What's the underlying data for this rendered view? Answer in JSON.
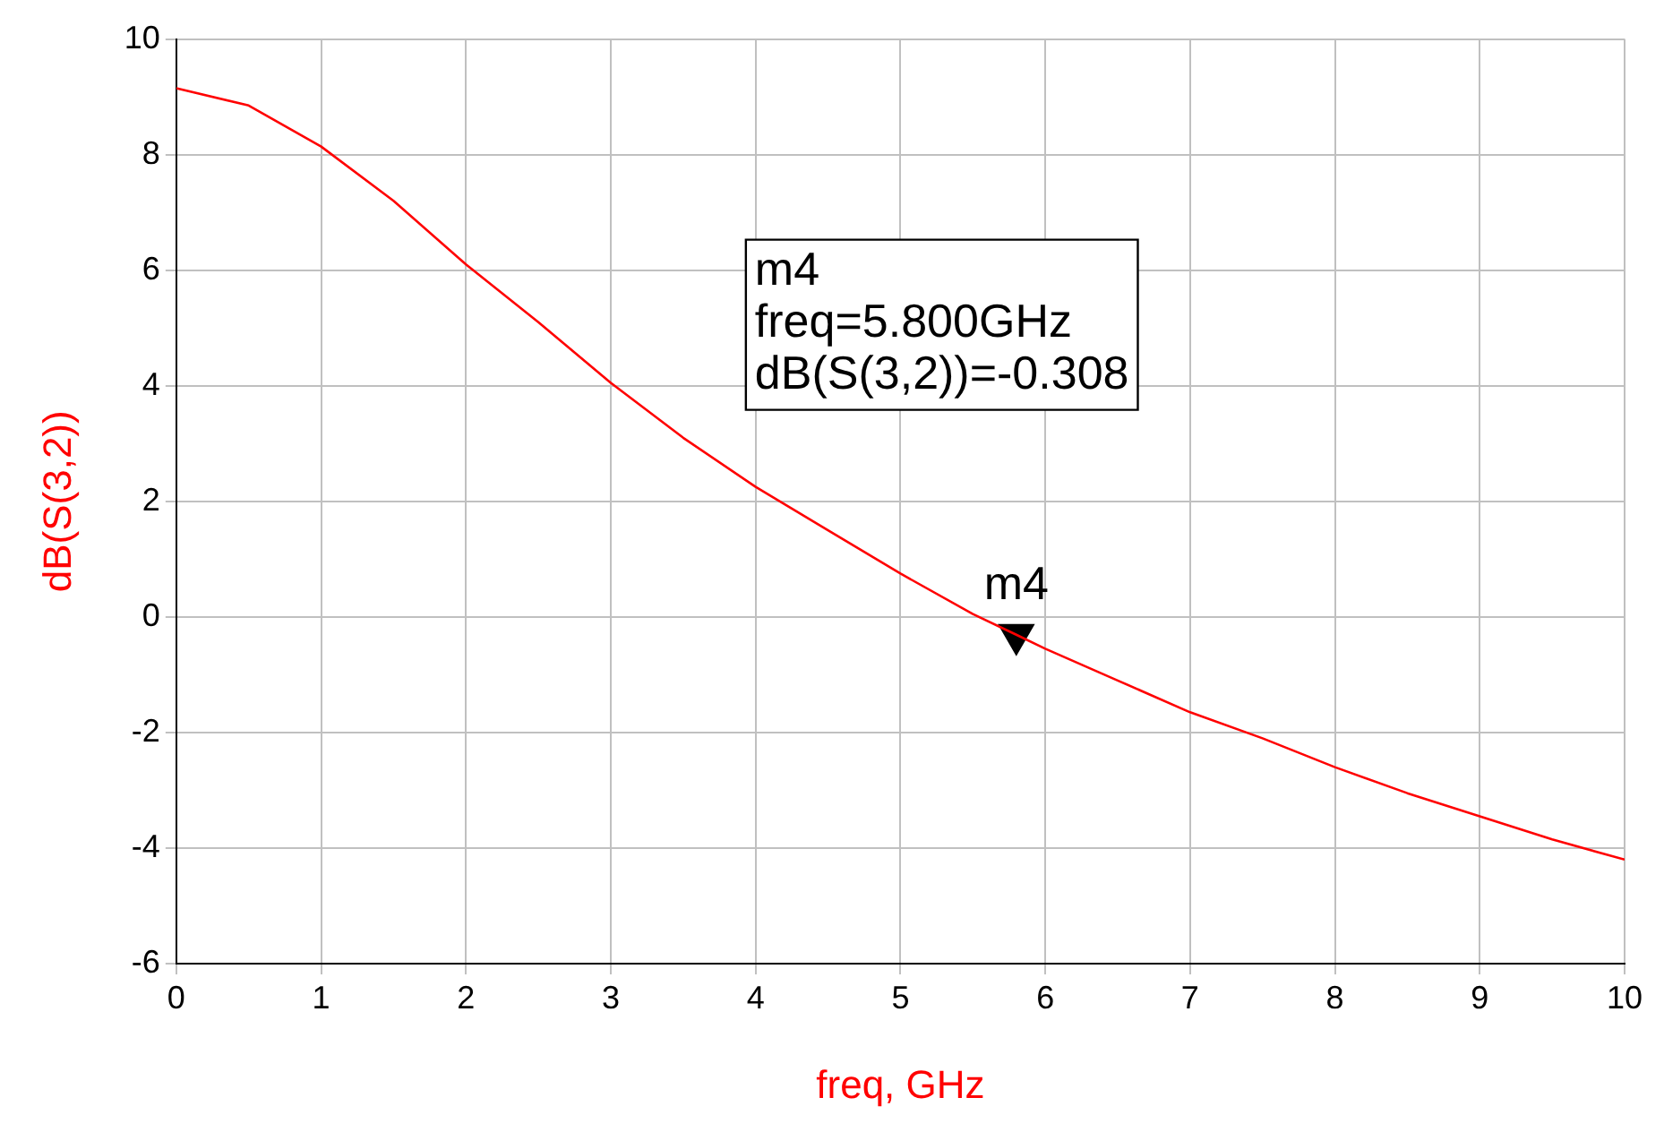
{
  "chart_data": {
    "type": "line",
    "xlabel": "freq, GHz",
    "ylabel": "dB(S(3,2))",
    "xlim": [
      0,
      10
    ],
    "xticks": [
      0,
      1,
      2,
      3,
      4,
      5,
      6,
      7,
      8,
      9,
      10
    ],
    "ylim": [
      -6,
      10
    ],
    "yticks": [
      -6,
      -4,
      -2,
      0,
      2,
      4,
      6,
      8,
      10
    ],
    "grid": true,
    "legend": false,
    "series": [
      {
        "color": "#ff0000",
        "x": [
          0,
          0.5,
          1,
          1.5,
          2,
          2.5,
          3,
          3.5,
          4,
          4.5,
          5,
          5.5,
          5.8,
          6,
          6.5,
          7,
          7.5,
          8,
          8.5,
          9,
          9.5,
          10
        ],
        "values": [
          9.15,
          8.85,
          8.14,
          7.2,
          6.1,
          5.1,
          4.05,
          3.1,
          2.25,
          1.5,
          0.75,
          0.05,
          -0.308,
          -0.55,
          -1.1,
          -1.65,
          -2.1,
          -2.6,
          -3.05,
          -3.45,
          -3.85,
          -4.2
        ]
      },
      {
        "type": "scatter",
        "color": "#000000",
        "marker": "triangle",
        "x": [
          5.8
        ],
        "values": [
          -0.308
        ]
      }
    ],
    "annotations": [
      {
        "text": "m4",
        "x": 5.8,
        "y": -0.308
      },
      "m4",
      "freq=5.800GHz",
      "dB(S(3,2))=-0.308"
    ]
  }
}
